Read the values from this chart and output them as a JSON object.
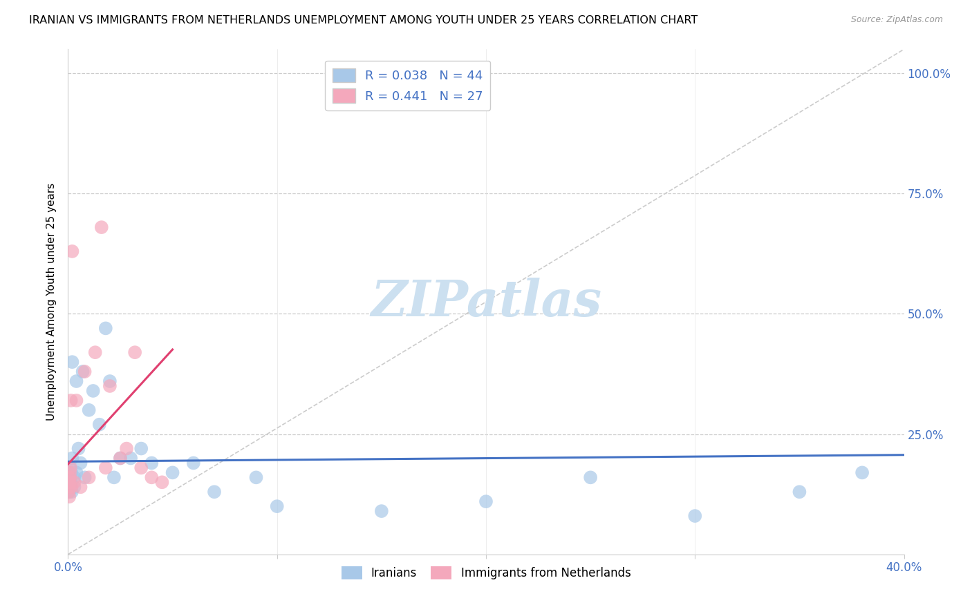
{
  "title": "IRANIAN VS IMMIGRANTS FROM NETHERLANDS UNEMPLOYMENT AMONG YOUTH UNDER 25 YEARS CORRELATION CHART",
  "source": "Source: ZipAtlas.com",
  "ylabel": "Unemployment Among Youth under 25 years",
  "color_iranian": "#a8c8e8",
  "color_netherlands": "#f4a8bc",
  "line_color_iranian": "#4472c4",
  "line_color_netherlands": "#e04070",
  "diagonal_color": "#cccccc",
  "grid_color": "#cccccc",
  "watermark_color": "#cce0f0",
  "iranians_x": [
    0.0002,
    0.0003,
    0.0004,
    0.0005,
    0.0006,
    0.0007,
    0.0008,
    0.001,
    0.001,
    0.0012,
    0.0014,
    0.0016,
    0.0018,
    0.002,
    0.002,
    0.003,
    0.003,
    0.004,
    0.004,
    0.005,
    0.006,
    0.007,
    0.008,
    0.01,
    0.012,
    0.015,
    0.018,
    0.02,
    0.022,
    0.025,
    0.03,
    0.035,
    0.04,
    0.05,
    0.06,
    0.07,
    0.09,
    0.1,
    0.15,
    0.2,
    0.25,
    0.3,
    0.35,
    0.38
  ],
  "iranians_y": [
    0.16,
    0.15,
    0.14,
    0.17,
    0.13,
    0.15,
    0.16,
    0.18,
    0.14,
    0.16,
    0.15,
    0.17,
    0.13,
    0.4,
    0.2,
    0.16,
    0.14,
    0.36,
    0.17,
    0.22,
    0.19,
    0.38,
    0.16,
    0.3,
    0.34,
    0.27,
    0.47,
    0.36,
    0.16,
    0.2,
    0.2,
    0.22,
    0.19,
    0.17,
    0.19,
    0.13,
    0.16,
    0.1,
    0.09,
    0.11,
    0.16,
    0.08,
    0.13,
    0.17
  ],
  "netherlands_x": [
    0.0002,
    0.0003,
    0.0004,
    0.0005,
    0.0006,
    0.0007,
    0.0009,
    0.001,
    0.0012,
    0.0014,
    0.0016,
    0.002,
    0.003,
    0.004,
    0.006,
    0.008,
    0.01,
    0.013,
    0.016,
    0.018,
    0.02,
    0.025,
    0.028,
    0.032,
    0.035,
    0.04,
    0.045
  ],
  "netherlands_y": [
    0.15,
    0.13,
    0.14,
    0.16,
    0.12,
    0.15,
    0.17,
    0.16,
    0.18,
    0.32,
    0.14,
    0.63,
    0.15,
    0.32,
    0.14,
    0.38,
    0.16,
    0.42,
    0.68,
    0.18,
    0.35,
    0.2,
    0.22,
    0.42,
    0.18,
    0.16,
    0.15
  ],
  "xlim": [
    0.0,
    0.4
  ],
  "ylim": [
    0.0,
    1.05
  ],
  "yticks": [
    0.25,
    0.5,
    0.75,
    1.0
  ],
  "ytick_labels": [
    "25.0%",
    "50.0%",
    "75.0%",
    "100.0%"
  ],
  "xticks": [
    0.0,
    0.1,
    0.2,
    0.3,
    0.4
  ],
  "xtick_labels_show": [
    "0.0%",
    "",
    "",
    "",
    "40.0%"
  ]
}
